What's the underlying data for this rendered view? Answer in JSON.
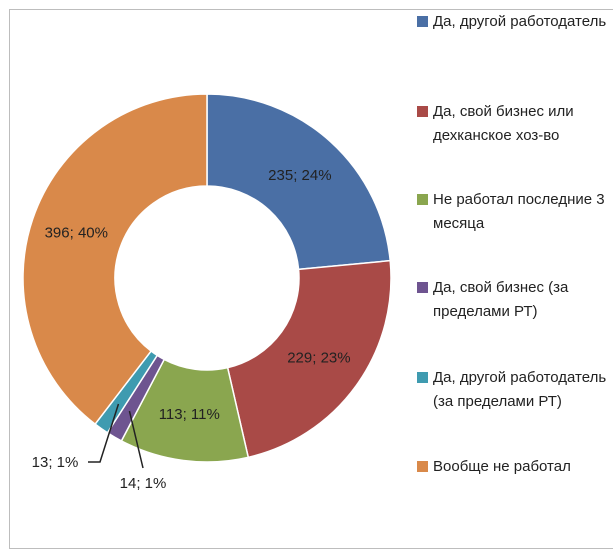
{
  "chart_data": {
    "type": "donut",
    "categories": [
      "Да, другой работодатель",
      "Да, свой бизнес или дехканское хоз-во",
      "Не работал последние 3 месяца",
      "Да, свой бизнес (за пределами РТ)",
      "Да, другой работодатель (за пределами РТ)",
      "Вообще не работал"
    ],
    "values": [
      235,
      229,
      113,
      14,
      13,
      396
    ],
    "value_labels": [
      "235; 24%",
      "229; 23%",
      "113; 11%",
      "14; 1%",
      "13; 1%",
      "396; 40%"
    ],
    "colors": [
      "#4a6fa5",
      "#a94a47",
      "#8aa64f",
      "#6e5490",
      "#3f9bb0",
      "#d9894a"
    ]
  }
}
